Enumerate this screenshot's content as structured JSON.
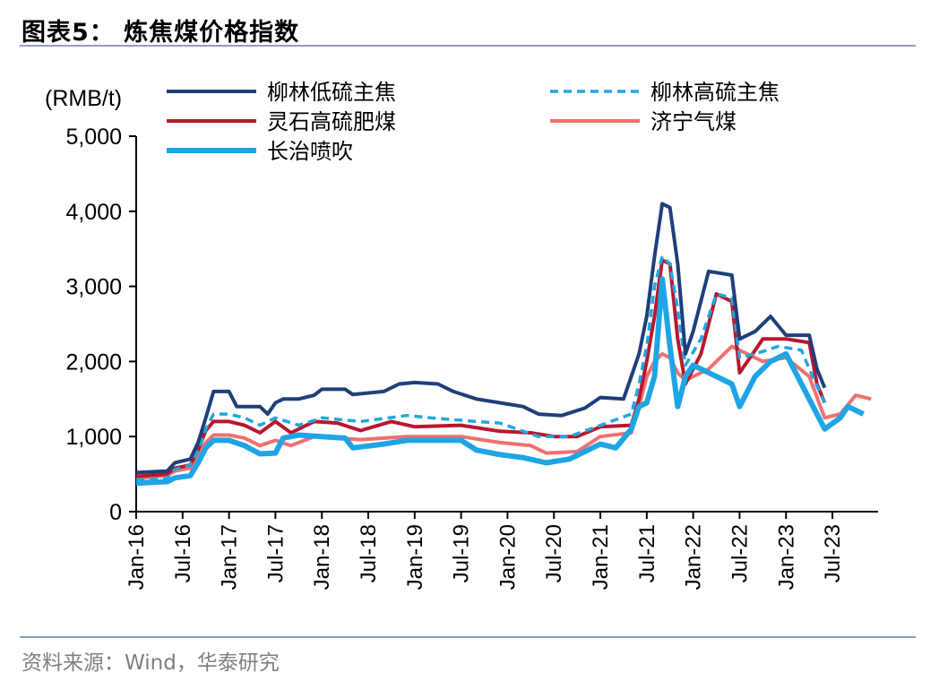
{
  "figure": {
    "title": "图表5：  炼焦煤价格指数",
    "source": "资料来源：Wind，华泰研究"
  },
  "chart_data": {
    "type": "line",
    "unit_label": "(RMB/t)",
    "ylim": [
      0,
      5000
    ],
    "yticks": [
      0,
      1000,
      2000,
      3000,
      4000,
      5000
    ],
    "ytick_labels": [
      "0",
      "1,000",
      "2,000",
      "3,000",
      "4,000",
      "5,000"
    ],
    "xlim": [
      "2016-01",
      "2023-12"
    ],
    "xticks": [
      "2016-01",
      "2016-07",
      "2017-01",
      "2017-07",
      "2018-01",
      "2018-07",
      "2019-01",
      "2019-07",
      "2020-01",
      "2020-07",
      "2021-01",
      "2021-07",
      "2022-01",
      "2022-07",
      "2023-01",
      "2023-07"
    ],
    "xtick_labels": [
      "Jan-16",
      "Jul-16",
      "Jan-17",
      "Jul-17",
      "Jan-18",
      "Jul-18",
      "Jan-19",
      "Jul-19",
      "Jan-20",
      "Jul-20",
      "Jan-21",
      "Jul-21",
      "Jan-22",
      "Jul-22",
      "Jan-23",
      "Jul-23"
    ],
    "grid": false,
    "legend_position": "top",
    "series": [
      {
        "name": "柳林低硫主焦",
        "color": "#1f3f7a",
        "dash": false,
        "points": [
          [
            "2016-01",
            520
          ],
          [
            "2016-05",
            540
          ],
          [
            "2016-06",
            650
          ],
          [
            "2016-08",
            700
          ],
          [
            "2016-09",
            920
          ],
          [
            "2016-10",
            1250
          ],
          [
            "2016-11",
            1600
          ],
          [
            "2017-01",
            1600
          ],
          [
            "2017-02",
            1400
          ],
          [
            "2017-05",
            1400
          ],
          [
            "2017-06",
            1300
          ],
          [
            "2017-07",
            1450
          ],
          [
            "2017-08",
            1500
          ],
          [
            "2017-10",
            1500
          ],
          [
            "2017-12",
            1550
          ],
          [
            "2018-01",
            1630
          ],
          [
            "2018-04",
            1630
          ],
          [
            "2018-05",
            1560
          ],
          [
            "2018-09",
            1600
          ],
          [
            "2018-11",
            1700
          ],
          [
            "2019-01",
            1720
          ],
          [
            "2019-04",
            1700
          ],
          [
            "2019-06",
            1600
          ],
          [
            "2019-09",
            1500
          ],
          [
            "2019-12",
            1450
          ],
          [
            "2020-03",
            1400
          ],
          [
            "2020-05",
            1300
          ],
          [
            "2020-08",
            1280
          ],
          [
            "2020-11",
            1380
          ],
          [
            "2021-01",
            1520
          ],
          [
            "2021-04",
            1500
          ],
          [
            "2021-05",
            1800
          ],
          [
            "2021-06",
            2100
          ],
          [
            "2021-07",
            2600
          ],
          [
            "2021-08",
            3400
          ],
          [
            "2021-09",
            4100
          ],
          [
            "2021-10",
            4050
          ],
          [
            "2021-11",
            3300
          ],
          [
            "2021-12",
            2100
          ],
          [
            "2022-01",
            2400
          ],
          [
            "2022-03",
            3200
          ],
          [
            "2022-06",
            3150
          ],
          [
            "2022-07",
            2300
          ],
          [
            "2022-09",
            2400
          ],
          [
            "2022-11",
            2600
          ],
          [
            "2023-01",
            2350
          ],
          [
            "2023-04",
            2350
          ],
          [
            "2023-05",
            1900
          ],
          [
            "2023-06",
            1650
          ]
        ]
      },
      {
        "name": "柳林高硫主焦",
        "color": "#22a7e0",
        "dash": true,
        "points": [
          [
            "2016-01",
            420
          ],
          [
            "2016-05",
            440
          ],
          [
            "2016-06",
            560
          ],
          [
            "2016-08",
            620
          ],
          [
            "2016-09",
            820
          ],
          [
            "2016-10",
            1100
          ],
          [
            "2016-11",
            1300
          ],
          [
            "2017-01",
            1300
          ],
          [
            "2017-03",
            1250
          ],
          [
            "2017-05",
            1150
          ],
          [
            "2017-07",
            1250
          ],
          [
            "2017-10",
            1150
          ],
          [
            "2018-01",
            1250
          ],
          [
            "2018-06",
            1200
          ],
          [
            "2018-12",
            1280
          ],
          [
            "2019-03",
            1250
          ],
          [
            "2019-09",
            1200
          ],
          [
            "2019-12",
            1180
          ],
          [
            "2020-05",
            1000
          ],
          [
            "2020-09",
            1000
          ],
          [
            "2021-01",
            1150
          ],
          [
            "2021-05",
            1300
          ],
          [
            "2021-06",
            1700
          ],
          [
            "2021-07",
            2200
          ],
          [
            "2021-08",
            3000
          ],
          [
            "2021-09",
            3400
          ],
          [
            "2021-10",
            3300
          ],
          [
            "2021-11",
            2700
          ],
          [
            "2021-12",
            1950
          ],
          [
            "2022-02",
            2300
          ],
          [
            "2022-04",
            2900
          ],
          [
            "2022-06",
            2850
          ],
          [
            "2022-07",
            2050
          ],
          [
            "2022-09",
            2100
          ],
          [
            "2022-12",
            2200
          ],
          [
            "2023-03",
            2150
          ],
          [
            "2023-04",
            1900
          ],
          [
            "2023-06",
            1450
          ]
        ]
      },
      {
        "name": "灵石高硫肥煤",
        "color": "#b7182e",
        "dash": false,
        "points": [
          [
            "2016-01",
            470
          ],
          [
            "2016-05",
            500
          ],
          [
            "2016-06",
            580
          ],
          [
            "2016-08",
            620
          ],
          [
            "2016-09",
            820
          ],
          [
            "2016-10",
            1080
          ],
          [
            "2016-11",
            1200
          ],
          [
            "2017-01",
            1200
          ],
          [
            "2017-03",
            1150
          ],
          [
            "2017-05",
            1050
          ],
          [
            "2017-07",
            1200
          ],
          [
            "2017-09",
            1050
          ],
          [
            "2017-12",
            1200
          ],
          [
            "2018-03",
            1180
          ],
          [
            "2018-06",
            1080
          ],
          [
            "2018-10",
            1200
          ],
          [
            "2019-01",
            1130
          ],
          [
            "2019-07",
            1150
          ],
          [
            "2019-12",
            1070
          ],
          [
            "2020-04",
            1050
          ],
          [
            "2020-07",
            1000
          ],
          [
            "2020-10",
            1000
          ],
          [
            "2021-01",
            1130
          ],
          [
            "2021-05",
            1150
          ],
          [
            "2021-06",
            1500
          ],
          [
            "2021-07",
            2000
          ],
          [
            "2021-08",
            2600
          ],
          [
            "2021-09",
            3350
          ],
          [
            "2021-10",
            3300
          ],
          [
            "2021-11",
            2300
          ],
          [
            "2021-12",
            1700
          ],
          [
            "2022-02",
            2100
          ],
          [
            "2022-04",
            2900
          ],
          [
            "2022-06",
            2800
          ],
          [
            "2022-07",
            1850
          ],
          [
            "2022-10",
            2300
          ],
          [
            "2023-01",
            2300
          ],
          [
            "2023-04",
            2250
          ],
          [
            "2023-05",
            1700
          ],
          [
            "2023-06",
            1450
          ]
        ]
      },
      {
        "name": "济宁气煤",
        "color": "#f07070",
        "dash": false,
        "points": [
          [
            "2016-01",
            440
          ],
          [
            "2016-05",
            480
          ],
          [
            "2016-06",
            540
          ],
          [
            "2016-08",
            580
          ],
          [
            "2016-09",
            760
          ],
          [
            "2016-10",
            920
          ],
          [
            "2016-11",
            1020
          ],
          [
            "2017-01",
            1020
          ],
          [
            "2017-03",
            980
          ],
          [
            "2017-05",
            880
          ],
          [
            "2017-07",
            950
          ],
          [
            "2017-09",
            880
          ],
          [
            "2017-12",
            1000
          ],
          [
            "2018-06",
            960
          ],
          [
            "2018-12",
            1000
          ],
          [
            "2019-07",
            1000
          ],
          [
            "2019-12",
            920
          ],
          [
            "2020-04",
            880
          ],
          [
            "2020-06",
            780
          ],
          [
            "2020-10",
            800
          ],
          [
            "2021-01",
            1000
          ],
          [
            "2021-05",
            1050
          ],
          [
            "2021-06",
            1400
          ],
          [
            "2021-07",
            1800
          ],
          [
            "2021-08",
            2000
          ],
          [
            "2021-09",
            2100
          ],
          [
            "2021-10",
            2050
          ],
          [
            "2021-11",
            1850
          ],
          [
            "2021-12",
            1750
          ],
          [
            "2022-03",
            1900
          ],
          [
            "2022-06",
            2200
          ],
          [
            "2022-08",
            2100
          ],
          [
            "2022-10",
            2000
          ],
          [
            "2023-01",
            2050
          ],
          [
            "2023-04",
            1800
          ],
          [
            "2023-06",
            1250
          ],
          [
            "2023-08",
            1300
          ],
          [
            "2023-10",
            1550
          ],
          [
            "2023-12",
            1500
          ]
        ]
      },
      {
        "name": "长治喷吹",
        "color": "#1ea5e6",
        "dash": false,
        "points": [
          [
            "2016-01",
            380
          ],
          [
            "2016-05",
            400
          ],
          [
            "2016-06",
            450
          ],
          [
            "2016-08",
            480
          ],
          [
            "2016-09",
            650
          ],
          [
            "2016-10",
            850
          ],
          [
            "2016-11",
            950
          ],
          [
            "2017-01",
            950
          ],
          [
            "2017-03",
            880
          ],
          [
            "2017-05",
            770
          ],
          [
            "2017-07",
            780
          ],
          [
            "2017-08",
            980
          ],
          [
            "2017-10",
            1020
          ],
          [
            "2018-01",
            1000
          ],
          [
            "2018-04",
            980
          ],
          [
            "2018-05",
            850
          ],
          [
            "2018-09",
            900
          ],
          [
            "2018-12",
            950
          ],
          [
            "2019-07",
            950
          ],
          [
            "2019-09",
            820
          ],
          [
            "2019-12",
            760
          ],
          [
            "2020-03",
            720
          ],
          [
            "2020-06",
            650
          ],
          [
            "2020-09",
            700
          ],
          [
            "2021-01",
            900
          ],
          [
            "2021-03",
            850
          ],
          [
            "2021-05",
            1100
          ],
          [
            "2021-06",
            1400
          ],
          [
            "2021-07",
            1450
          ],
          [
            "2021-08",
            1800
          ],
          [
            "2021-09",
            3100
          ],
          [
            "2021-10",
            2200
          ],
          [
            "2021-11",
            1400
          ],
          [
            "2021-12",
            1800
          ],
          [
            "2022-01",
            1950
          ],
          [
            "2022-06",
            1700
          ],
          [
            "2022-07",
            1400
          ],
          [
            "2022-09",
            1800
          ],
          [
            "2022-11",
            2000
          ],
          [
            "2023-01",
            2100
          ],
          [
            "2023-03",
            1700
          ],
          [
            "2023-05",
            1300
          ],
          [
            "2023-06",
            1100
          ],
          [
            "2023-08",
            1250
          ],
          [
            "2023-09",
            1400
          ],
          [
            "2023-11",
            1300
          ]
        ]
      }
    ]
  }
}
